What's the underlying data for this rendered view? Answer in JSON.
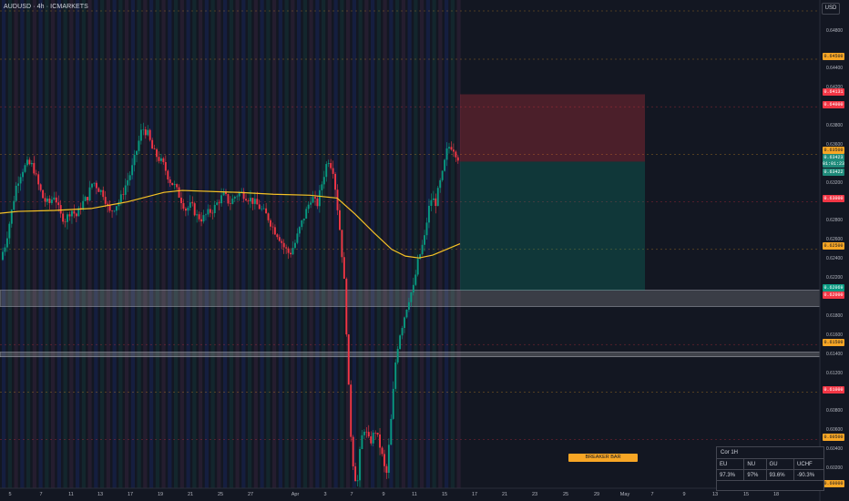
{
  "header": {
    "symbol_label": "AUDUSD · 4h · ICMARKETS",
    "currency_button": "USD"
  },
  "price_axis": {
    "ticks": [
      "0.64800",
      "0.64400",
      "0.64200",
      "0.63800",
      "0.63600",
      "0.63200",
      "0.62800",
      "0.62600",
      "0.62400",
      "0.62200",
      "0.61800",
      "0.61600",
      "0.61400",
      "0.61200",
      "0.60800",
      "0.60600",
      "0.60400",
      "0.60200"
    ],
    "tags": [
      {
        "text": "0.64500",
        "bg": "#f7a625",
        "fg": "#131722"
      },
      {
        "text": "0.64131",
        "bg": "#f23645",
        "fg": "#ffffff"
      },
      {
        "text": "0.64000",
        "bg": "#f23645",
        "fg": "#ffffff"
      },
      {
        "text": "0.63500",
        "bg": "#f7a625",
        "fg": "#131722"
      },
      {
        "text": "0.63423",
        "bg": "#1e8a7a",
        "fg": "#ffffff"
      },
      {
        "text": "01:01:23",
        "bg": "#1e8a7a",
        "fg": "#ffffff"
      },
      {
        "text": "0.63422",
        "bg": "#1e8a7a",
        "fg": "#ffffff"
      },
      {
        "text": "0.63000",
        "bg": "#f23645",
        "fg": "#ffffff"
      },
      {
        "text": "0.62500",
        "bg": "#f7a625",
        "fg": "#131722"
      },
      {
        "text": "0.62069",
        "bg": "#089981",
        "fg": "#ffffff"
      },
      {
        "text": "0.62000",
        "bg": "#f23645",
        "fg": "#ffffff"
      },
      {
        "text": "0.61500",
        "bg": "#f7a625",
        "fg": "#131722"
      },
      {
        "text": "0.61000",
        "bg": "#f23645",
        "fg": "#ffffff"
      },
      {
        "text": "0.60500",
        "bg": "#f7a625",
        "fg": "#131722"
      },
      {
        "text": "0.60000",
        "bg": "#f7a625",
        "fg": "#131722"
      }
    ]
  },
  "time_axis": {
    "labels": [
      "5",
      "7",
      "11",
      "13",
      "17",
      "19",
      "21",
      "25",
      "27",
      "Apr",
      "3",
      "7",
      "9",
      "11",
      "15",
      "17",
      "21",
      "23",
      "25",
      "29",
      "May",
      "7",
      "9",
      "13",
      "15",
      "18"
    ]
  },
  "annotations": {
    "breaker_bar": "BREAKER BAR"
  },
  "correlation_table": {
    "title": "Cor 1H",
    "headers": [
      "EU",
      "NU",
      "GU",
      "UCHF"
    ],
    "values": [
      "97.3%",
      "97%",
      "93.6%",
      "-90.3%"
    ]
  },
  "colors": {
    "bull": "#089981",
    "bear": "#f23645",
    "ma": "#f7c325",
    "accent_orange": "#f7a625"
  }
}
